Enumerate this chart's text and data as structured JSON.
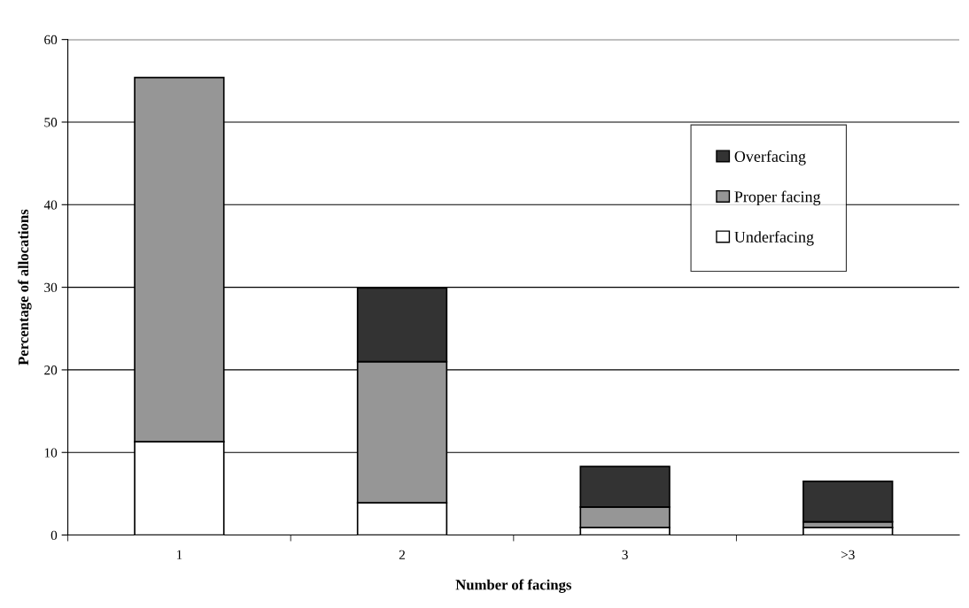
{
  "chart_data": {
    "type": "bar",
    "stacked": true,
    "xlabel": "Number of facings",
    "ylabel": "Percentage of allocations",
    "categories": [
      "1",
      "2",
      "3",
      ">3"
    ],
    "series": [
      {
        "name": "Underfacing",
        "color": "#ffffff",
        "values": [
          11.3,
          3.9,
          0.9,
          0.9
        ]
      },
      {
        "name": "Proper facing",
        "color": "#969696",
        "values": [
          44.1,
          17.1,
          2.5,
          0.7
        ]
      },
      {
        "name": "Overfacing",
        "color": "#333333",
        "values": [
          null,
          8.9,
          4.9,
          4.9
        ]
      }
    ],
    "ylim": [
      0,
      60
    ],
    "yticks": [
      0,
      10,
      20,
      30,
      40,
      50,
      60
    ],
    "grid": "y",
    "legend": "right"
  }
}
